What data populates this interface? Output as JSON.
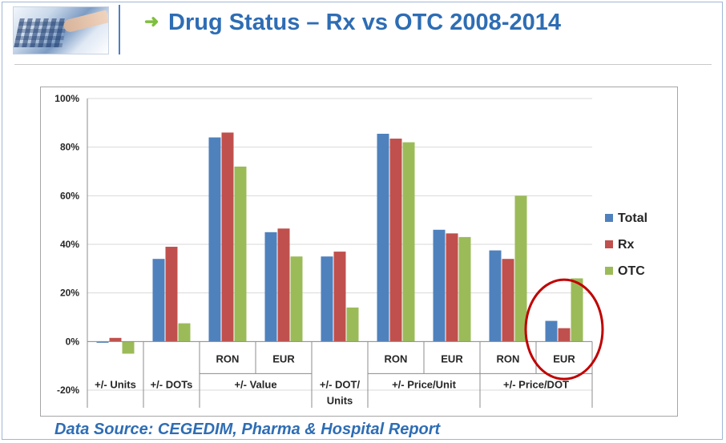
{
  "header": {
    "title": "Drug Status – Rx vs OTC 2008-2014"
  },
  "footer": {
    "source": "Data Source: CEGEDIM, Pharma & Hospital Report"
  },
  "colors": {
    "title": "#2e6db4",
    "arrow": "#7fbf3f",
    "total": "#4f81bd",
    "rx": "#c0504d",
    "otc": "#9bbb59",
    "highlight_circle": "#c00000"
  },
  "chart_data": {
    "type": "bar",
    "ylim": [
      -20,
      100
    ],
    "ytick_labels": [
      "-20%",
      "0%",
      "20%",
      "40%",
      "60%",
      "80%",
      "100%"
    ],
    "yticks": [
      -20,
      0,
      20,
      40,
      60,
      80,
      100
    ],
    "grid": true,
    "legend_position": "right",
    "categories": [
      "",
      "",
      "RON",
      "EUR",
      "",
      "RON",
      "EUR",
      "RON",
      "EUR"
    ],
    "groups": [
      {
        "label": "+/- Units",
        "span": [
          0,
          0
        ]
      },
      {
        "label": "+/- DOTs",
        "span": [
          1,
          1
        ]
      },
      {
        "label": "+/- Value",
        "span": [
          2,
          3
        ]
      },
      {
        "label": "+/- DOT/ Units",
        "span": [
          4,
          4
        ]
      },
      {
        "label": "+/- Price/Unit",
        "span": [
          5,
          6
        ]
      },
      {
        "label": "+/- Price/DOT",
        "span": [
          7,
          8
        ]
      }
    ],
    "series": [
      {
        "name": "Total",
        "color": "#4f81bd",
        "values": [
          -0.5,
          34,
          84,
          45,
          35,
          85.5,
          46,
          37.5,
          8.5
        ]
      },
      {
        "name": "Rx",
        "color": "#c0504d",
        "values": [
          1.5,
          39,
          86,
          46.5,
          37,
          83.5,
          44.5,
          34,
          5.5
        ]
      },
      {
        "name": "OTC",
        "color": "#9bbb59",
        "values": [
          -5,
          7.5,
          72,
          35,
          14,
          82,
          43,
          60,
          26
        ]
      }
    ],
    "highlight_category": 8
  }
}
